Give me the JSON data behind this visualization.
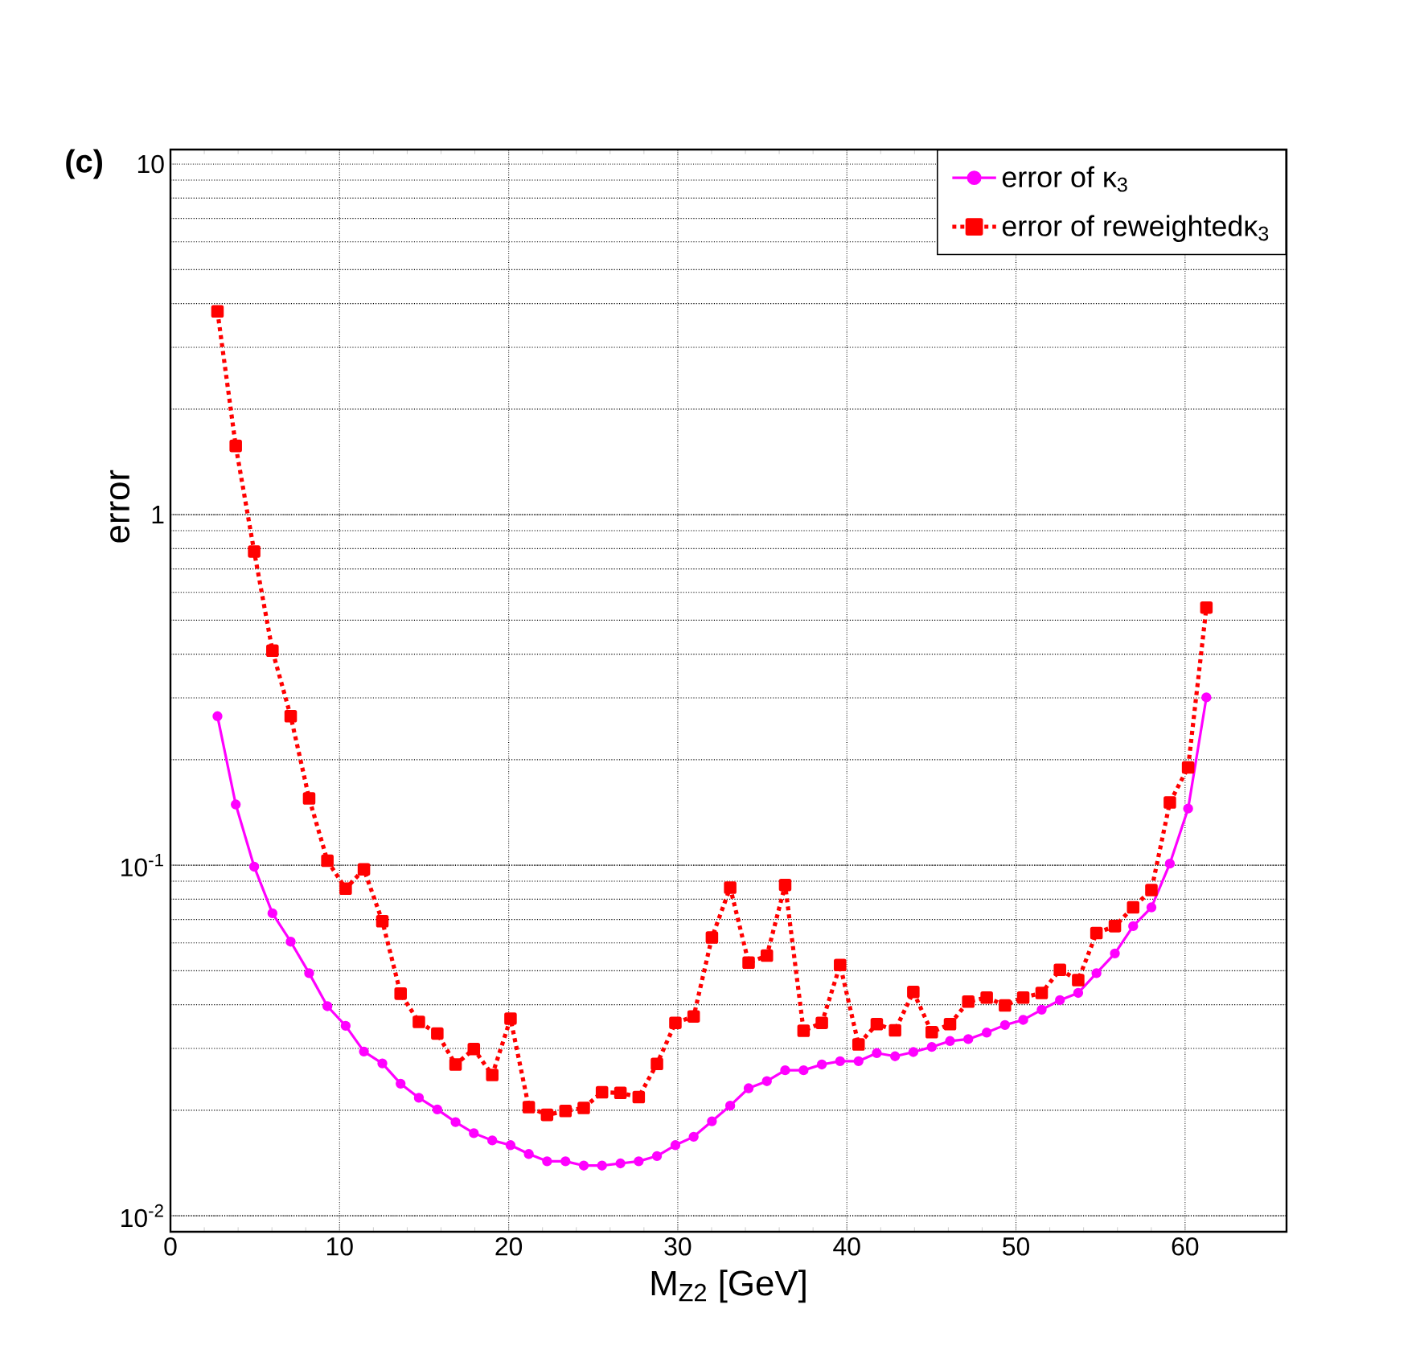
{
  "chart_data": {
    "type": "line",
    "xlabel": "M$_{Z2}$ [GeV]",
    "ylabel": "error",
    "annotations": [
      "(c)"
    ],
    "log": "y",
    "grid": true,
    "legend": "top right",
    "xlim": [
      0,
      66
    ],
    "ylim": [
      0.009,
      11
    ],
    "xticks": [
      0,
      10,
      20,
      30,
      40,
      50,
      60
    ],
    "yticks": [
      {
        "value": 0.01,
        "label": "10$^{-2}$"
      },
      {
        "value": 0.1,
        "label": "10$^{-1}$"
      },
      1,
      10
    ],
    "x": [
      2.78,
      3.86,
      4.95,
      6.03,
      7.11,
      8.2,
      9.28,
      10.36,
      11.44,
      12.53,
      13.61,
      14.69,
      15.78,
      16.86,
      17.94,
      19.03,
      20.11,
      21.19,
      22.27,
      23.36,
      24.44,
      25.52,
      26.61,
      27.69,
      28.77,
      29.86,
      30.94,
      32.02,
      33.1,
      34.19,
      35.27,
      36.35,
      37.44,
      38.52,
      39.6,
      40.69,
      41.77,
      42.85,
      43.93,
      45.02,
      46.1,
      47.18,
      48.27,
      49.35,
      50.43,
      51.52,
      52.6,
      53.68,
      54.76,
      55.85,
      56.93,
      58.01,
      59.1,
      60.18,
      61.26
    ],
    "series": [
      {
        "name": "error of κ$_{3}$",
        "color": "#ff00ff",
        "marker": "circle",
        "line_style": "solid",
        "values": [
          0.266,
          0.149,
          0.099,
          0.0729,
          0.0605,
          0.0492,
          0.0396,
          0.0348,
          0.0294,
          0.0272,
          0.0238,
          0.0217,
          0.0201,
          0.0185,
          0.0172,
          0.0164,
          0.0159,
          0.015,
          0.0143,
          0.0143,
          0.0139,
          0.0139,
          0.0141,
          0.0143,
          0.0148,
          0.0159,
          0.0168,
          0.0186,
          0.0206,
          0.0231,
          0.0242,
          0.026,
          0.026,
          0.027,
          0.0276,
          0.0276,
          0.0291,
          0.0285,
          0.0293,
          0.0303,
          0.0315,
          0.0319,
          0.0333,
          0.035,
          0.0362,
          0.0387,
          0.0412,
          0.0432,
          0.0492,
          0.056,
          0.067,
          0.0758,
          0.101,
          0.145,
          0.301
        ]
      },
      {
        "name": "error of reweightedκ$_{3}$",
        "color": "#ff0000",
        "marker": "square",
        "line_style": "dotted",
        "values": [
          3.8,
          1.57,
          0.785,
          0.409,
          0.266,
          0.155,
          0.103,
          0.0857,
          0.0973,
          0.0692,
          0.043,
          0.0357,
          0.0331,
          0.027,
          0.0299,
          0.0252,
          0.0365,
          0.0204,
          0.0194,
          0.0199,
          0.0203,
          0.0225,
          0.0224,
          0.0218,
          0.0271,
          0.0355,
          0.037,
          0.0622,
          0.0863,
          0.0527,
          0.0552,
          0.0878,
          0.0337,
          0.0355,
          0.0519,
          0.0308,
          0.0352,
          0.0338,
          0.0435,
          0.0334,
          0.0352,
          0.0408,
          0.0419,
          0.0398,
          0.0419,
          0.0432,
          0.0503,
          0.047,
          0.064,
          0.067,
          0.0758,
          0.0849,
          0.151,
          0.19,
          0.543
        ]
      }
    ]
  }
}
